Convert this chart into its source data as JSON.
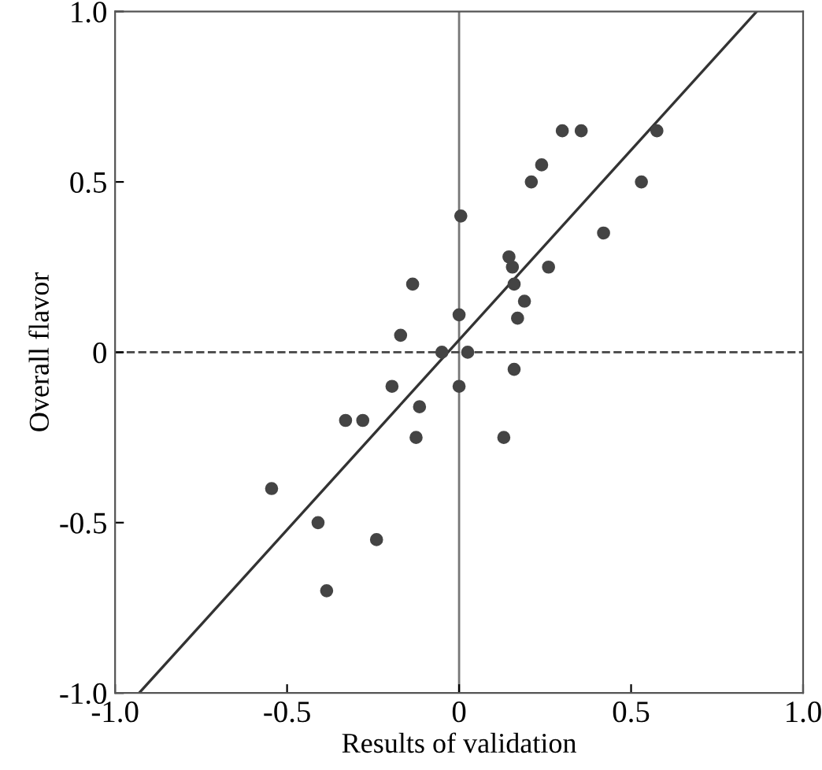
{
  "chart_data": {
    "type": "scatter",
    "xlabel": "Results of validation",
    "ylabel": "Overall flavor",
    "xlim": [
      -1.0,
      1.0
    ],
    "ylim": [
      -1.0,
      1.0
    ],
    "xticks": [
      {
        "value": -1.0,
        "label": "-1.0"
      },
      {
        "value": -0.5,
        "label": "-0.5"
      },
      0,
      {
        "value": 0.5,
        "label": "0.5"
      },
      {
        "value": 1.0,
        "label": "1.0"
      }
    ],
    "yticks": [
      {
        "value": -1.0,
        "label": "-1.0"
      },
      {
        "value": -0.5,
        "label": "-0.5"
      },
      0,
      {
        "value": 0.5,
        "label": "0.5"
      },
      {
        "value": 1.0,
        "label": "1.0"
      }
    ],
    "grid": false,
    "marker": "circle",
    "ref_lines": [
      {
        "axis": "x",
        "value": 0,
        "color": "#777777",
        "line_style": "solid"
      },
      {
        "axis": "y",
        "value": 0,
        "color": "#444444",
        "line_style": "dashed"
      }
    ],
    "series": [
      {
        "color": "#444444",
        "x": [
          -0.545,
          -0.41,
          -0.385,
          -0.24,
          -0.33,
          -0.28,
          -0.195,
          -0.17,
          -0.135,
          -0.115,
          -0.125,
          -0.05,
          0.0,
          0.005,
          0.0,
          0.025,
          0.13,
          0.16,
          0.145,
          0.155,
          0.16,
          0.17,
          0.19,
          0.21,
          0.24,
          0.26,
          0.3,
          0.355,
          0.42,
          0.53,
          0.575
        ],
        "values": [
          -0.4,
          -0.5,
          -0.7,
          -0.55,
          -0.2,
          -0.2,
          -0.1,
          0.05,
          0.2,
          -0.16,
          -0.25,
          0.0,
          0.11,
          0.4,
          -0.1,
          0.0,
          -0.25,
          -0.05,
          0.28,
          0.25,
          0.2,
          0.1,
          0.15,
          0.5,
          0.55,
          0.25,
          0.65,
          0.65,
          0.35,
          0.5,
          0.65
        ]
      },
      {
        "type": "line",
        "color": "#333333",
        "marker": "none",
        "x": [
          -0.93,
          0.865
        ],
        "values": [
          -1.0,
          1.0
        ]
      }
    ]
  }
}
